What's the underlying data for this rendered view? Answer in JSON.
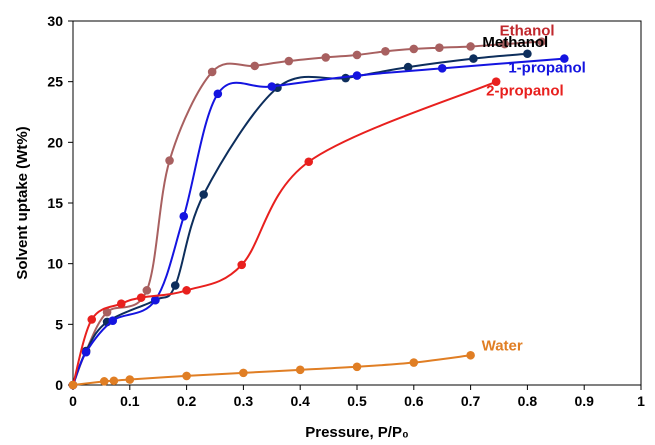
{
  "chart_data": {
    "type": "line",
    "title": "",
    "xlabel": "Pressure, P/P₀",
    "ylabel": "Solvent uptake (Wt%)",
    "xlim": [
      0,
      1
    ],
    "ylim": [
      0,
      30
    ],
    "x_ticks": [
      "0",
      "0.1",
      "0.2",
      "0.3",
      "0.4",
      "0.5",
      "0.6",
      "0.7",
      "0.8",
      "0.9",
      "1"
    ],
    "y_ticks": [
      "0",
      "5",
      "10",
      "15",
      "20",
      "25",
      "30"
    ],
    "grid": false,
    "legend": "inline labels at line ends",
    "series": [
      {
        "name": "Ethanol",
        "line_color": "#A86060",
        "marker_color": "#A86060",
        "label_color": "#C0282D",
        "x": [
          0,
          0.023,
          0.06,
          0.13,
          0.17,
          0.245,
          0.32,
          0.38,
          0.445,
          0.5,
          0.55,
          0.6,
          0.645,
          0.7,
          0.76,
          0.825
        ],
        "y": [
          0,
          2.8,
          6,
          7.8,
          18.5,
          25.8,
          26.3,
          26.7,
          27,
          27.2,
          27.5,
          27.7,
          27.8,
          27.9,
          28.1,
          28.3
        ]
      },
      {
        "name": "Methanol",
        "line_color": "#0D2E5C",
        "marker_color": "#0D2E5C",
        "label_color": "#000000",
        "x": [
          0,
          0.023,
          0.06,
          0.145,
          0.18,
          0.23,
          0.36,
          0.48,
          0.59,
          0.705,
          0.8
        ],
        "y": [
          0,
          2.8,
          5.2,
          7,
          8.2,
          15.7,
          24.5,
          25.3,
          26.2,
          26.9,
          27.3
        ]
      },
      {
        "name": "1-propanol",
        "line_color": "#1414E0",
        "marker_color": "#1414E0",
        "label_color": "#1414E0",
        "x": [
          0,
          0.023,
          0.07,
          0.145,
          0.195,
          0.255,
          0.35,
          0.5,
          0.65,
          0.865
        ],
        "y": [
          0,
          2.7,
          5.3,
          7,
          13.9,
          24,
          24.6,
          25.5,
          26.1,
          26.9
        ]
      },
      {
        "name": "2-propanol",
        "line_color": "#E8201E",
        "marker_color": "#E8201E",
        "label_color": "#E8201E",
        "x": [
          0,
          0.033,
          0.085,
          0.12,
          0.2,
          0.297,
          0.415,
          0.745
        ],
        "y": [
          0,
          5.4,
          6.7,
          7.2,
          7.8,
          9.9,
          18.4,
          25
        ]
      },
      {
        "name": "Water",
        "line_color": "#E07E24",
        "marker_color": "#E07E24",
        "label_color": "#E07E24",
        "x": [
          0,
          0.055,
          0.072,
          0.1,
          0.2,
          0.3,
          0.4,
          0.5,
          0.6,
          0.7
        ],
        "y": [
          0,
          0.3,
          0.35,
          0.45,
          0.75,
          1,
          1.25,
          1.5,
          1.85,
          2.45
        ]
      }
    ]
  }
}
